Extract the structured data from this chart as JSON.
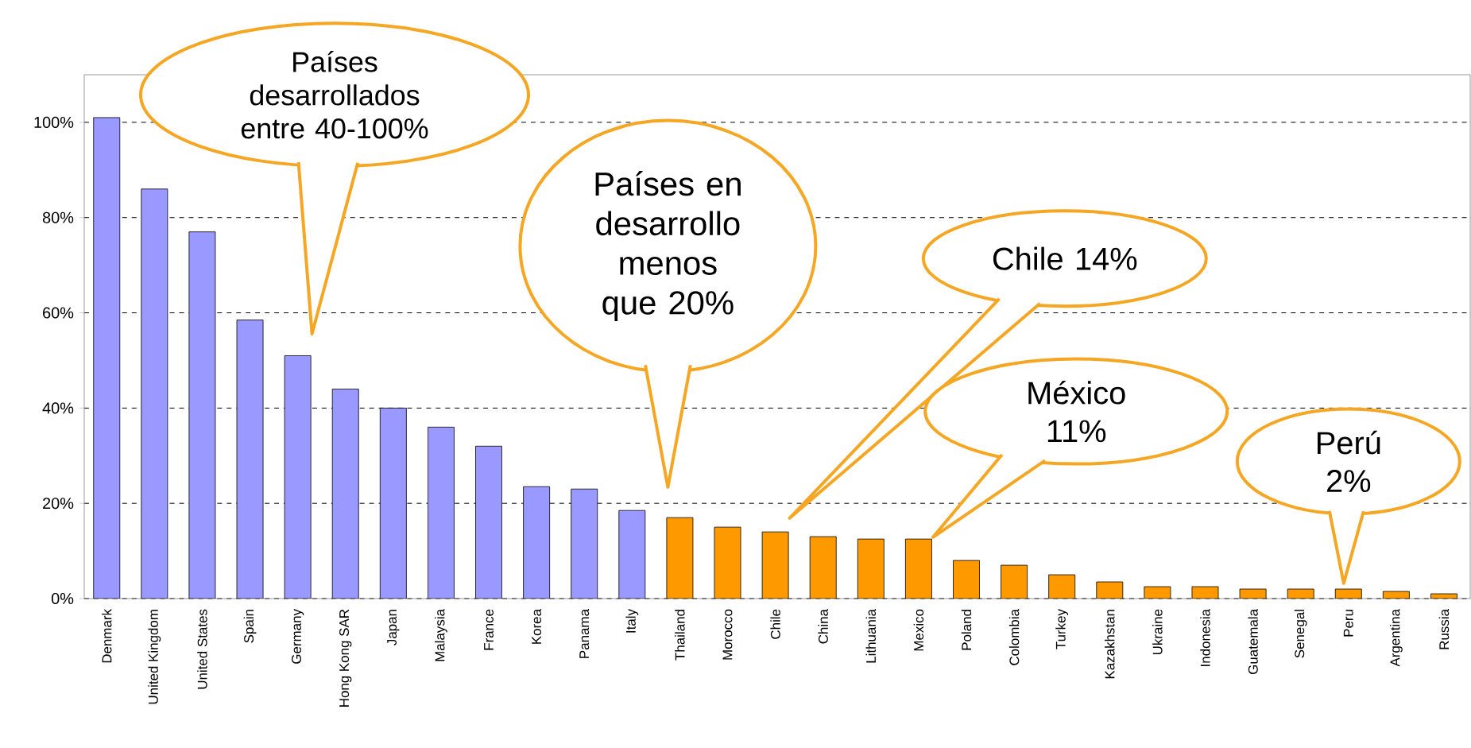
{
  "chart_data": {
    "type": "bar",
    "categories": [
      "Denmark",
      "United Kingdom",
      "United States",
      "Spain",
      "Germany",
      "Hong Kong SAR",
      "Japan",
      "Malaysia",
      "France",
      "Korea",
      "Panama",
      "Italy",
      "Thailand",
      "Morocco",
      "Chile",
      "China",
      "Lithuania",
      "Mexico",
      "Poland",
      "Colombia",
      "Turkey",
      "Kazakhstan",
      "Ukraine",
      "Indonesia",
      "Guatemala",
      "Senegal",
      "Peru",
      "Argentina",
      "Russia"
    ],
    "values": [
      101,
      86,
      77,
      58.5,
      51,
      44,
      40,
      36,
      32,
      23.5,
      23,
      18.5,
      17,
      15,
      14,
      13,
      12.5,
      12.5,
      8,
      7,
      5,
      3.5,
      2.5,
      2.5,
      2,
      2,
      2,
      1.5,
      1
    ],
    "colors": [
      "#9999ff",
      "#9999ff",
      "#9999ff",
      "#9999ff",
      "#9999ff",
      "#9999ff",
      "#9999ff",
      "#9999ff",
      "#9999ff",
      "#9999ff",
      "#9999ff",
      "#9999ff",
      "#ff9900",
      "#ff9900",
      "#ff9900",
      "#ff9900",
      "#ff9900",
      "#ff9900",
      "#ff9900",
      "#ff9900",
      "#ff9900",
      "#ff9900",
      "#ff9900",
      "#ff9900",
      "#ff9900",
      "#ff9900",
      "#ff9900",
      "#ff9900",
      "#ff9900"
    ],
    "ylim": [
      0,
      110
    ],
    "yticks": [
      {
        "value": 0,
        "label": "0%"
      },
      {
        "value": 20,
        "label": "20%"
      },
      {
        "value": 40,
        "label": "40%"
      },
      {
        "value": 60,
        "label": "60%"
      },
      {
        "value": 80,
        "label": "80%"
      },
      {
        "value": 100,
        "label": "100%"
      }
    ],
    "grid": "y",
    "annotations": [
      "Países desarrollados entre 40-100%",
      "Países en desarrollo menos que 20%",
      "Chile 14%",
      "México 11%",
      "Perú 2%"
    ]
  }
}
